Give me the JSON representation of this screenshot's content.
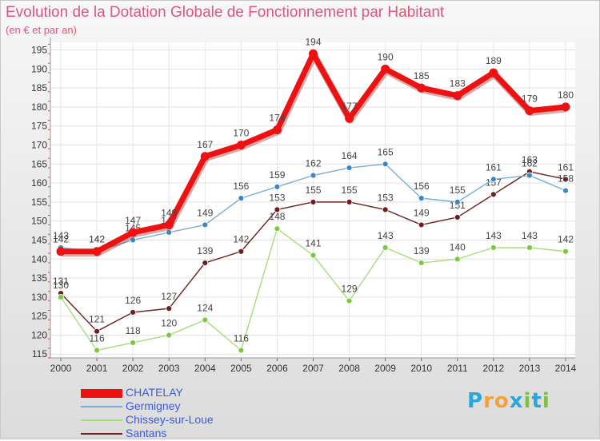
{
  "header": {
    "title": "Evolution de la Dotation Globale de Fonctionnement par Habitant",
    "subtitle": "(en € et par an)"
  },
  "logo": {
    "text": "Proxiti"
  },
  "chart_data": {
    "type": "line",
    "title": "Evolution de la Dotation Globale de Fonctionnement par Habitant",
    "subtitle": "(en € et par an)",
    "x": [
      2000,
      2001,
      2002,
      2003,
      2004,
      2005,
      2006,
      2007,
      2008,
      2009,
      2010,
      2011,
      2012,
      2013,
      2014
    ],
    "ylim": [
      114,
      197
    ],
    "yticks": [
      115,
      120,
      125,
      130,
      135,
      140,
      145,
      150,
      155,
      160,
      165,
      170,
      175,
      180,
      185,
      190,
      195
    ],
    "grid": true,
    "legend_position": "bottom-left",
    "series": [
      {
        "name": "Santans",
        "color": "#6e1f1f",
        "marker": "#6e1f1f",
        "values": [
          131,
          121,
          126,
          127,
          139,
          142,
          153,
          155,
          155,
          153,
          149,
          151,
          157,
          163,
          161
        ]
      },
      {
        "name": "Chissey-sur-Loue",
        "color": "#a6dd7a",
        "marker": "#7ac943",
        "values": [
          130,
          116,
          118,
          120,
          124,
          116,
          148,
          141,
          129,
          143,
          139,
          140,
          143,
          143,
          142
        ]
      },
      {
        "name": "Germigney",
        "color": "#78acd6",
        "marker": "#3d86c6",
        "values": [
          143,
          142,
          145,
          147,
          149,
          156,
          159,
          162,
          164,
          165,
          156,
          155,
          161,
          162,
          158
        ]
      },
      {
        "name": "CHATELAY",
        "color": "#ee1111",
        "marker": "#ee1111",
        "values": [
          142,
          142,
          147,
          149,
          167,
          170,
          174,
          194,
          177,
          190,
          185,
          183,
          189,
          179,
          180
        ]
      }
    ],
    "legend_order": [
      "CHATELAY",
      "Germigney",
      "Chissey-sur-Loue",
      "Santans"
    ]
  }
}
